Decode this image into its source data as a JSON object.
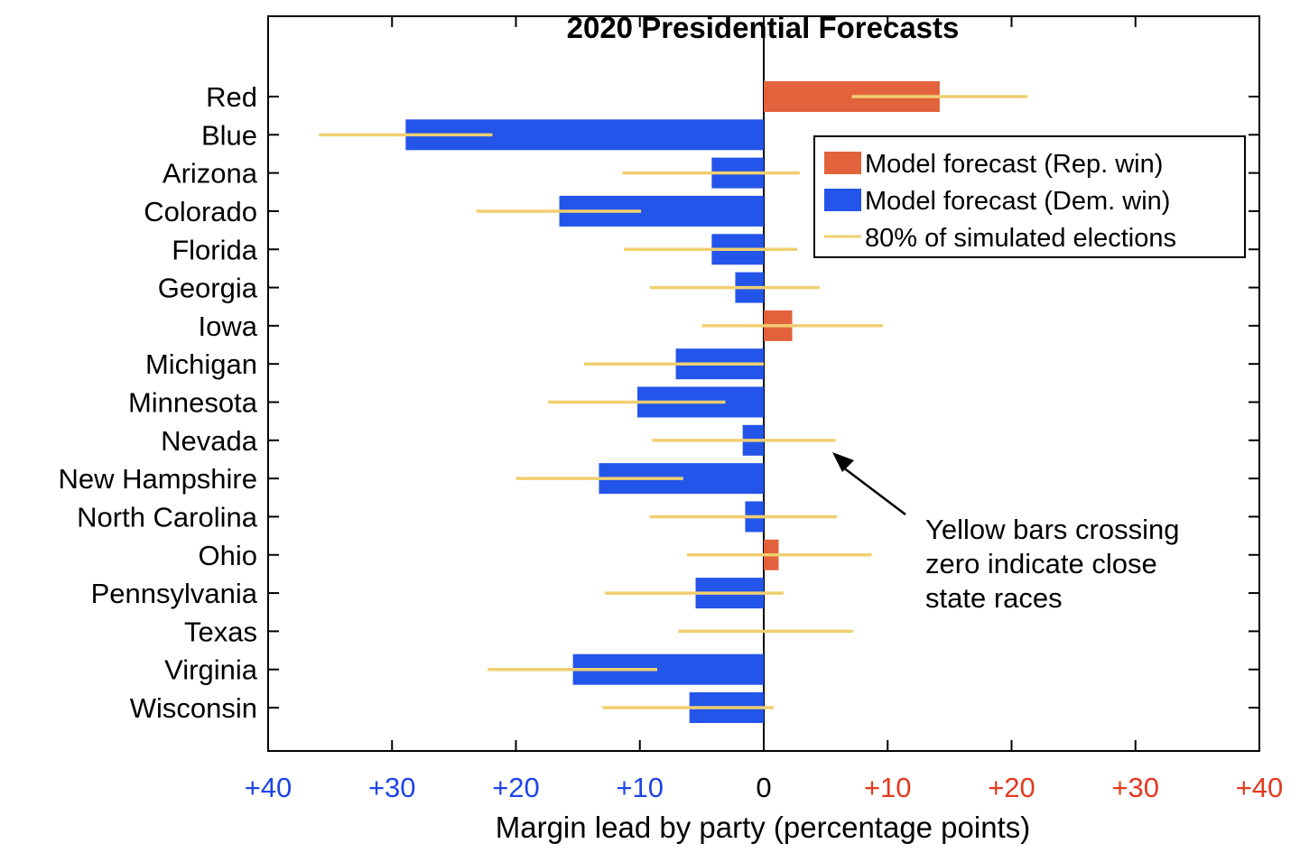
{
  "chart_data": {
    "type": "bar",
    "orientation": "horizontal",
    "title": "2020 Presidential Forecasts",
    "xlabel": "Margin lead by party (percentage points)",
    "ylabel": "",
    "xlim": [
      -40,
      40
    ],
    "x_tick_values": [
      -40,
      -30,
      -20,
      -10,
      0,
      10,
      20,
      30,
      40
    ],
    "x_tick_labels": [
      "+40",
      "+30",
      "+20",
      "+10",
      "0",
      "+10",
      "+20",
      "+30",
      "+40"
    ],
    "grid": false,
    "legend_position": "top-right",
    "categories": [
      "Red",
      "Blue",
      "Arizona",
      "Colorado",
      "Florida",
      "Georgia",
      "Iowa",
      "Michigan",
      "Minnesota",
      "Nevada",
      "New Hampshire",
      "North Carolina",
      "Ohio",
      "Pennsylvania",
      "Texas",
      "Virginia",
      "Wisconsin"
    ],
    "values": [
      14.2,
      -28.9,
      -4.2,
      -16.5,
      -4.2,
      -2.3,
      2.3,
      -7.1,
      -10.2,
      -1.7,
      -13.3,
      -1.5,
      1.2,
      -5.5,
      0.0,
      -15.4,
      -6.0
    ],
    "intervals": [
      [
        7.1,
        21.3
      ],
      [
        -35.9,
        -21.9
      ],
      [
        -11.4,
        2.9
      ],
      [
        -23.2,
        -9.9
      ],
      [
        -11.3,
        2.7
      ],
      [
        -9.2,
        4.5
      ],
      [
        -5.0,
        9.6
      ],
      [
        -14.5,
        0.0
      ],
      [
        -17.4,
        -3.1
      ],
      [
        -9.0,
        5.8
      ],
      [
        -20.0,
        -6.5
      ],
      [
        -9.2,
        5.9
      ],
      [
        -6.2,
        8.7
      ],
      [
        -12.8,
        1.6
      ],
      [
        -6.9,
        7.2
      ],
      [
        -22.3,
        -8.6
      ],
      [
        -13.0,
        0.8
      ]
    ],
    "legend": [
      {
        "label": "Model forecast (Rep. win)",
        "kind": "bar",
        "color": "#e2623c"
      },
      {
        "label": "Model forecast (Dem. win)",
        "kind": "bar",
        "color": "#2455ea"
      },
      {
        "label": "80% of simulated elections",
        "kind": "line",
        "color": "#f0cf70"
      }
    ],
    "annotation": {
      "lines": [
        "Yellow bars crossing",
        "zero indicate close",
        "state races"
      ],
      "arrow_to": [
        5.5,
        -9.7
      ]
    },
    "colors": {
      "rep": "#e2623c",
      "dem": "#2455ea",
      "interval": "#f0cf70",
      "tick_dem": "#1f45e6",
      "tick_rep": "#e23a1f"
    }
  }
}
